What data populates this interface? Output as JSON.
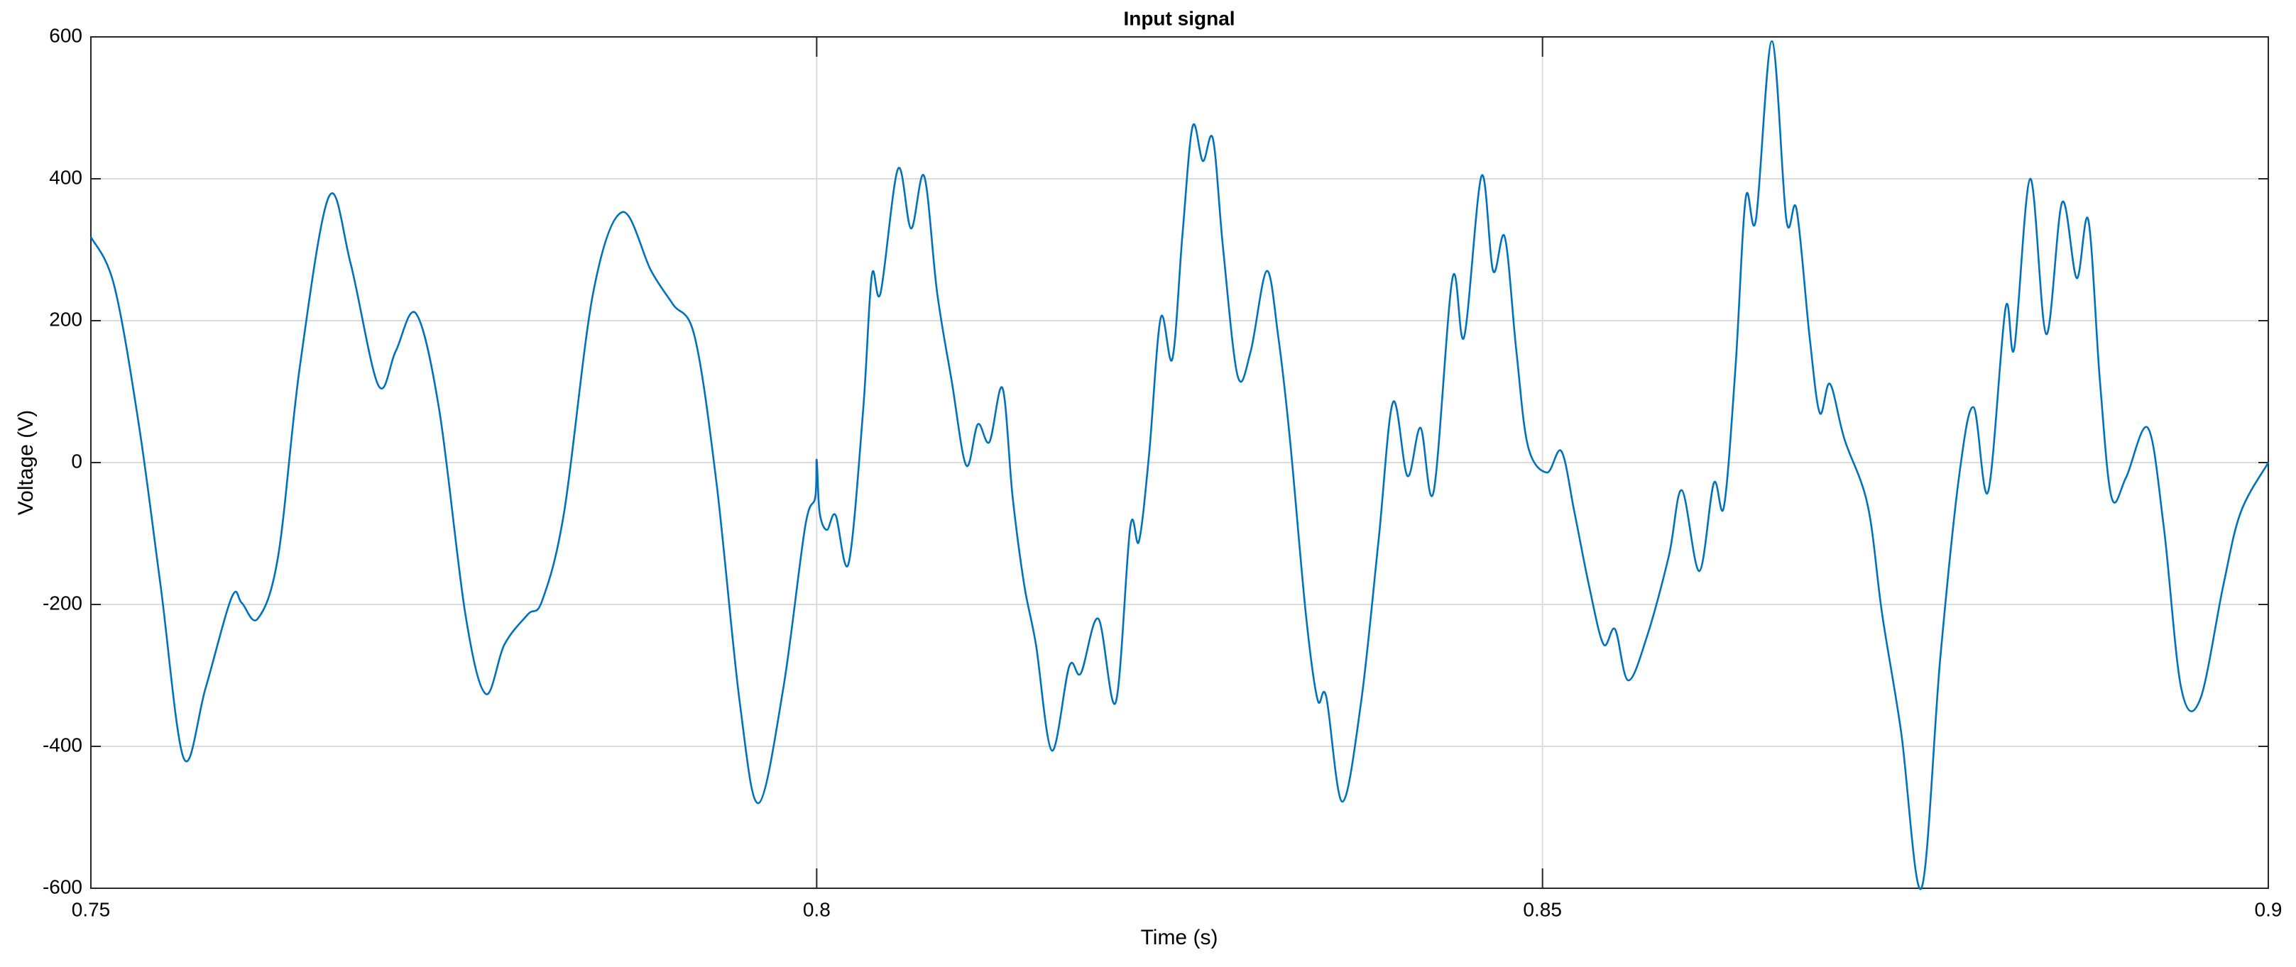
{
  "chart_data": {
    "type": "line",
    "title": "Input signal",
    "xlabel": "Time (s)",
    "ylabel": "Voltage (V)",
    "xlim": [
      0.75,
      0.9
    ],
    "xticks": [
      0.75,
      0.8,
      0.85,
      0.9
    ],
    "ylim": [
      -600,
      600
    ],
    "yticks": [
      -600,
      -400,
      -200,
      0,
      200,
      400,
      600
    ],
    "grid": true,
    "x": [
      0.75,
      0.7516,
      0.7533,
      0.7548,
      0.7564,
      0.7579,
      0.7597,
      0.7604,
      0.7615,
      0.7629,
      0.7644,
      0.7664,
      0.7679,
      0.7698,
      0.771,
      0.7724,
      0.774,
      0.7758,
      0.7772,
      0.7785,
      0.7801,
      0.7811,
      0.7826,
      0.7846,
      0.7866,
      0.7886,
      0.7901,
      0.7916,
      0.7931,
      0.7947,
      0.796,
      0.7977,
      0.7992,
      0.7999,
      0.8,
      0.8002,
      0.8007,
      0.8013,
      0.8022,
      0.8032,
      0.8038,
      0.8044,
      0.8056,
      0.8065,
      0.8074,
      0.8083,
      0.8093,
      0.8103,
      0.8111,
      0.8119,
      0.8128,
      0.8135,
      0.8143,
      0.8151,
      0.8162,
      0.8174,
      0.8182,
      0.8194,
      0.8206,
      0.8216,
      0.8222,
      0.8229,
      0.8237,
      0.8245,
      0.8252,
      0.8259,
      0.8266,
      0.8273,
      0.828,
      0.829,
      0.8299,
      0.831,
      0.8318,
      0.8326,
      0.8337,
      0.8345,
      0.8351,
      0.8362,
      0.8375,
      0.8387,
      0.8397,
      0.8407,
      0.8416,
      0.8425,
      0.8438,
      0.8446,
      0.8458,
      0.8466,
      0.8474,
      0.8482,
      0.849,
      0.8503,
      0.8513,
      0.8522,
      0.8532,
      0.8542,
      0.855,
      0.8559,
      0.8572,
      0.8587,
      0.8596,
      0.8608,
      0.8618,
      0.8625,
      0.8633,
      0.864,
      0.8647,
      0.8658,
      0.8668,
      0.8675,
      0.8684,
      0.8691,
      0.8698,
      0.8708,
      0.8724,
      0.8734,
      0.8747,
      0.8761,
      0.8774,
      0.8787,
      0.8797,
      0.8807,
      0.8819,
      0.8825,
      0.8836,
      0.8847,
      0.8858,
      0.8868,
      0.8876,
      0.8884,
      0.8892,
      0.8902,
      0.8917,
      0.8928,
      0.894,
      0.8953,
      0.8969,
      0.8981,
      0.9
    ],
    "series": [
      {
        "name": "Input signal",
        "color": "#0072bd",
        "values": [
          318,
          250,
          54,
          -173,
          -417,
          -318,
          -190,
          -198,
          -220,
          -132,
          136,
          375,
          280,
          109,
          157,
          210,
          74,
          -214,
          -326,
          -256,
          -214,
          -194,
          -70,
          239,
          353,
          270,
          223,
          177,
          -29,
          -338,
          -480,
          -318,
          -91,
          -49,
          4,
          -70,
          -95,
          -74,
          -142,
          74,
          264,
          239,
          414,
          330,
          404,
          239,
          115,
          -4,
          54,
          29,
          105,
          -49,
          -173,
          -256,
          -406,
          -287,
          -297,
          -220,
          -338,
          -91,
          -111,
          12,
          204,
          146,
          322,
          474,
          425,
          456,
          301,
          122,
          157,
          270,
          177,
          33,
          -214,
          -334,
          -330,
          -478,
          -338,
          -111,
          85,
          -19,
          49,
          -41,
          260,
          177,
          404,
          270,
          318,
          157,
          23,
          -14,
          16,
          -70,
          -173,
          -256,
          -235,
          -307,
          -245,
          -132,
          -39,
          -153,
          -29,
          -62,
          136,
          373,
          342,
          594,
          342,
          357,
          177,
          70,
          111,
          33,
          -60,
          -214,
          -379,
          -600,
          -276,
          -19,
          78,
          -41,
          218,
          161,
          400,
          181,
          367,
          260,
          342,
          115,
          -49,
          -21,
          49,
          -91,
          -318,
          -334,
          -173,
          -70,
          0
        ]
      }
    ]
  }
}
